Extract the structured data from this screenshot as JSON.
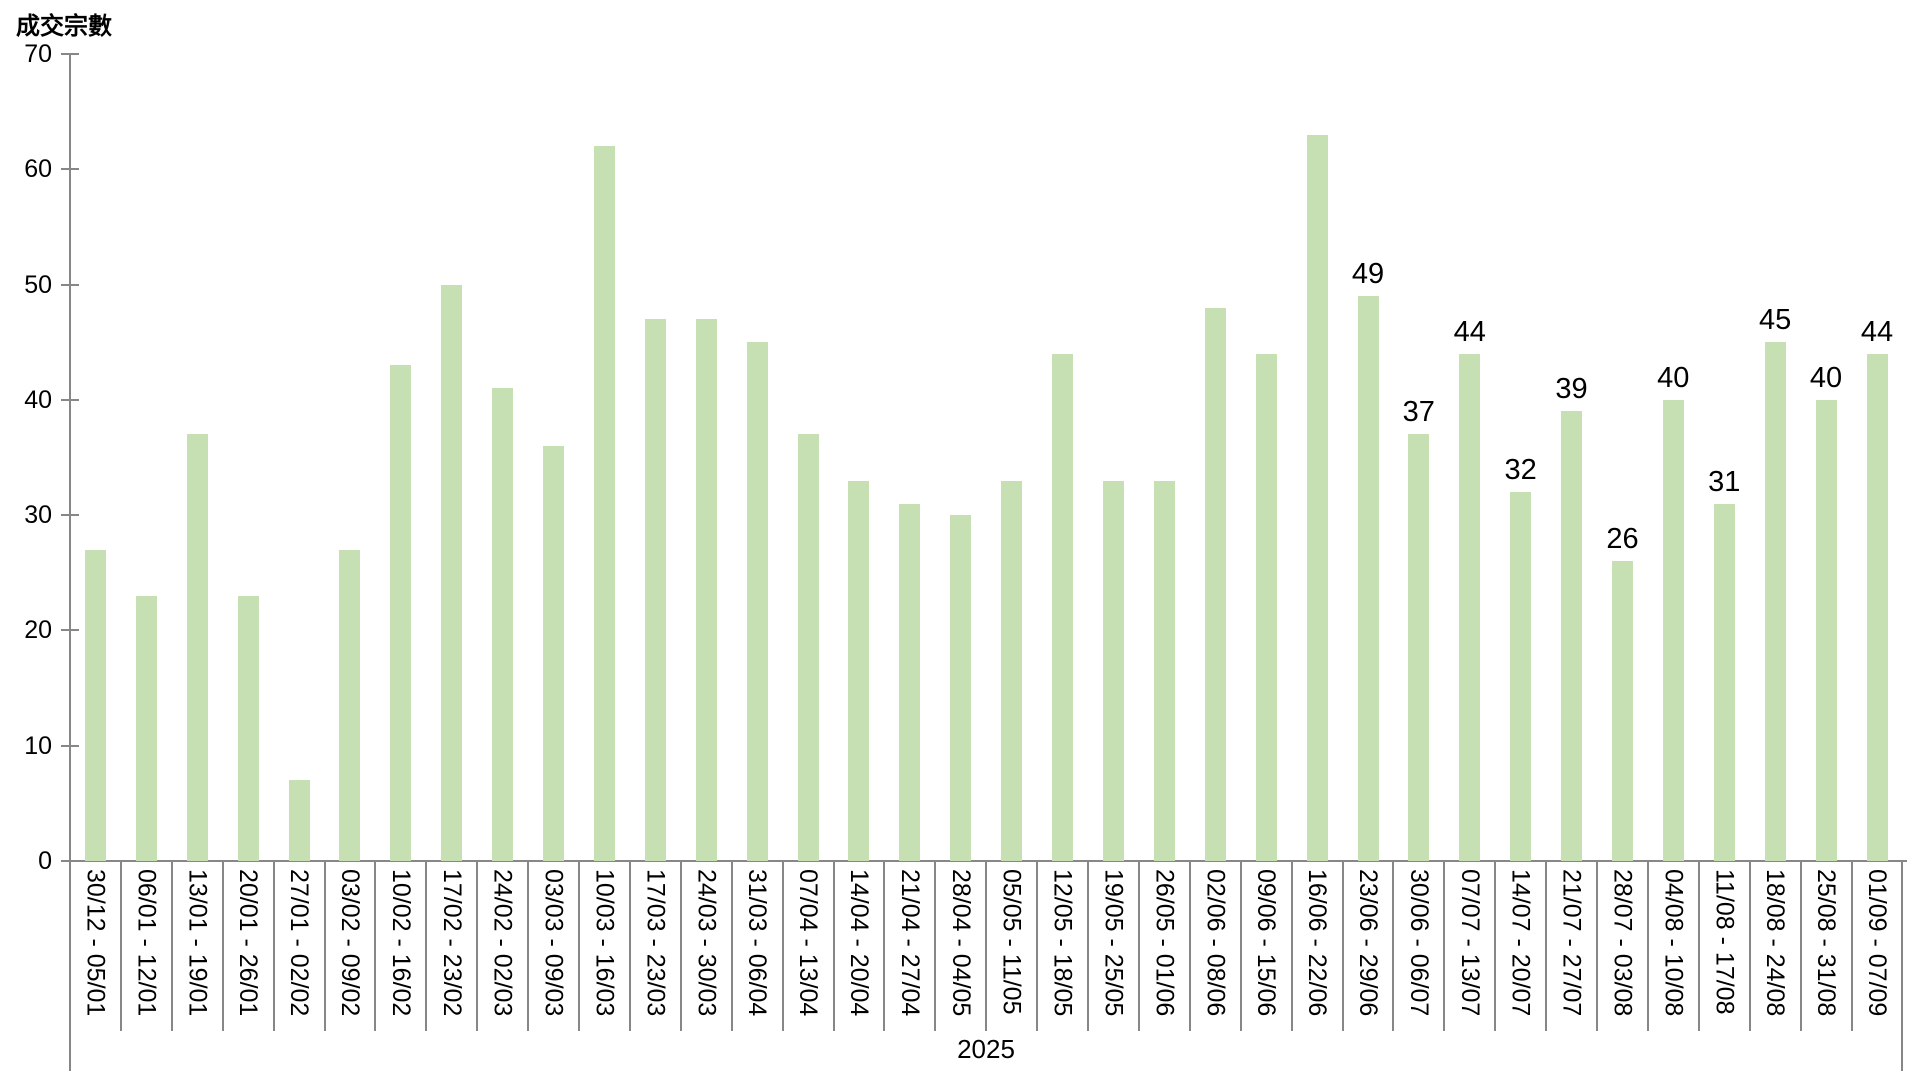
{
  "chart_data": {
    "type": "bar",
    "title": "",
    "ylabel": "成交宗數",
    "xlabel": "2025",
    "categories": [
      "30/12 - 05/01",
      "06/01 - 12/01",
      "13/01 - 19/01",
      "20/01 - 26/01",
      "27/01 - 02/02",
      "03/02 - 09/02",
      "10/02 - 16/02",
      "17/02 - 23/02",
      "24/02 - 02/03",
      "03/03 - 09/03",
      "10/03 - 16/03",
      "17/03 - 23/03",
      "24/03 - 30/03",
      "31/03 - 06/04",
      "07/04 - 13/04",
      "14/04 - 20/04",
      "21/04 - 27/04",
      "28/04 - 04/05",
      "05/05 - 11/05",
      "12/05 - 18/05",
      "19/05 - 25/05",
      "26/05 - 01/06",
      "02/06 - 08/06",
      "09/06 - 15/06",
      "16/06 - 22/06",
      "23/06 - 29/06",
      "30/06 - 06/07",
      "07/07 - 13/07",
      "14/07 - 20/07",
      "21/07 - 27/07",
      "28/07 - 03/08",
      "04/08 - 10/08",
      "11/08 - 17/08",
      "18/08 - 24/08",
      "25/08 - 31/08",
      "01/09 - 07/09"
    ],
    "values": [
      27,
      23,
      37,
      23,
      7,
      27,
      43,
      50,
      41,
      36,
      62,
      47,
      47,
      45,
      37,
      33,
      31,
      30,
      33,
      44,
      33,
      33,
      48,
      44,
      63,
      49,
      37,
      44,
      32,
      39,
      26,
      40,
      31,
      45,
      40,
      44
    ],
    "data_labels_start_index": 25,
    "data_label_values": [
      49,
      37,
      44,
      32,
      39,
      26,
      40,
      31,
      45,
      40,
      44
    ],
    "ylim": [
      0,
      70
    ],
    "yticks": [
      0,
      10,
      20,
      30,
      40,
      50,
      60,
      70
    ],
    "grid": false,
    "legend_position": "none",
    "bar_color": "#c6e0b4",
    "axis_color": "#878787",
    "text_color": "#000000"
  }
}
